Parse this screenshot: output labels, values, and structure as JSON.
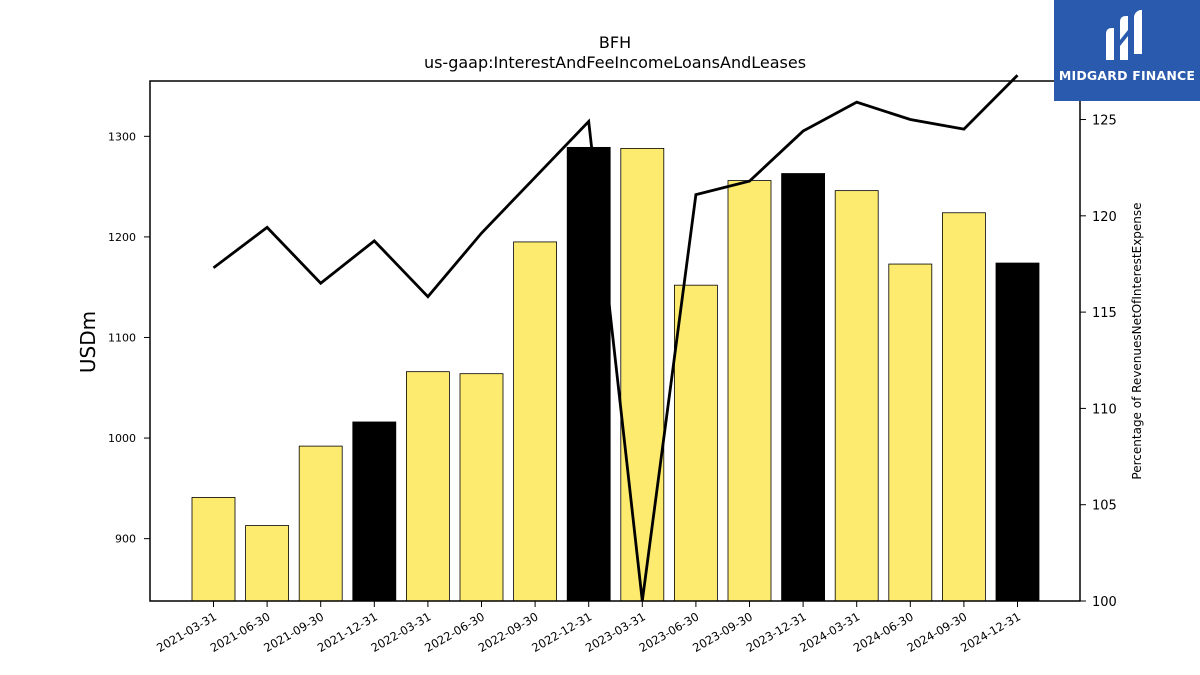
{
  "chart_data": {
    "type": "bar",
    "title": "BFH",
    "subtitle": "us-gaap:InterestAndFeeIncomeLoansAndLeases",
    "ylabel": "USDm",
    "y2label": "Percentage of RevenuesNetOfInterestExpense",
    "categories": [
      "2021-03-31",
      "2021-06-30",
      "2021-09-30",
      "2021-12-31",
      "2022-03-31",
      "2022-06-30",
      "2022-09-30",
      "2022-12-31",
      "2023-03-31",
      "2023-06-30",
      "2023-09-30",
      "2023-12-31",
      "2024-03-31",
      "2024-06-30",
      "2024-09-30",
      "2024-12-31"
    ],
    "series": [
      {
        "type": "bar",
        "axis": "left",
        "values": [
          941,
          913,
          992,
          1016,
          1066,
          1064,
          1195,
          1289,
          1288,
          1152,
          1256,
          1263,
          1246,
          1173,
          1224,
          1174
        ],
        "highlight_color": "#000000",
        "color": "#fdeb70",
        "highlighted": [
          false,
          false,
          false,
          true,
          false,
          false,
          false,
          true,
          false,
          false,
          false,
          true,
          false,
          false,
          false,
          true
        ]
      },
      {
        "type": "line",
        "axis": "right",
        "color": "#000000",
        "values": [
          117.3,
          119.4,
          116.5,
          118.7,
          115.8,
          119.1,
          122.0,
          124.9,
          100.0,
          121.1,
          121.8,
          124.4,
          125.9,
          125.0,
          124.5,
          127.3
        ]
      }
    ],
    "ylim": [
      838,
      1355
    ],
    "y2lim": [
      100,
      127
    ],
    "yticks": [
      900,
      1000,
      1100,
      1200,
      1300
    ],
    "y2ticks": [
      100,
      105,
      110,
      115,
      120,
      125
    ]
  },
  "logo": {
    "text": "MIDGARD FINANCE"
  }
}
